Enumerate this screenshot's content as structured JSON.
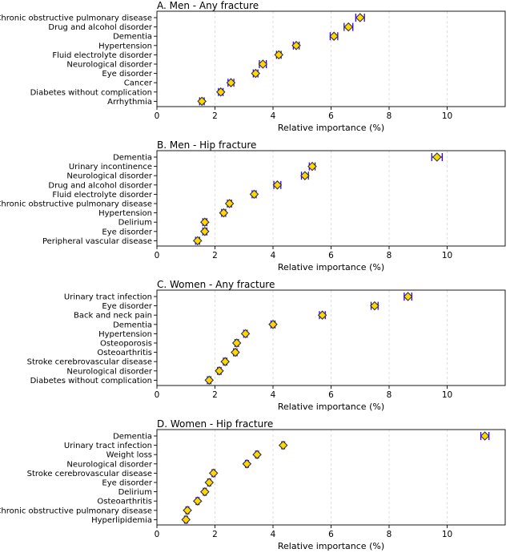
{
  "chart_data": [
    {
      "type": "scatter",
      "title": "A. Men - Any fracture",
      "xlabel": "Relative importance (%)",
      "xlim": [
        0,
        12
      ],
      "xticks": [
        0,
        2,
        4,
        6,
        8,
        10
      ],
      "grid": "vertical dashed",
      "categories": [
        "Chronic obstructive pulmonary disease",
        "Drug and alcohol disorder",
        "Dementia",
        "Hypertension",
        "Fluid electrolyte disorder",
        "Neurological disorder",
        "Eye disorder",
        "Cancer",
        "Diabetes without complication",
        "Arrhythmia"
      ],
      "values": [
        7.0,
        6.6,
        6.1,
        4.8,
        4.2,
        3.65,
        3.4,
        2.55,
        2.2,
        1.55
      ],
      "error": [
        0.15,
        0.15,
        0.13,
        0.1,
        0.08,
        0.12,
        0.08,
        0.1,
        0.08,
        0.08
      ]
    },
    {
      "type": "scatter",
      "title": "B. Men - Hip fracture",
      "xlabel": "Relative importance (%)",
      "xlim": [
        0,
        12
      ],
      "xticks": [
        0,
        2,
        4,
        6,
        8,
        10
      ],
      "grid": "vertical dashed",
      "categories": [
        "Dementia",
        "Urinary incontinence",
        "Neurological disorder",
        "Drug and alcohol disorder",
        "Fluid electrolyte disorder",
        "Chronic obstructive pulmonary disease",
        "Hypertension",
        "Delirium",
        "Eye disorder",
        "Peripheral vascular disease"
      ],
      "values": [
        9.65,
        5.35,
        5.1,
        4.15,
        3.35,
        2.5,
        2.3,
        1.65,
        1.65,
        1.4
      ],
      "error": [
        0.18,
        0.1,
        0.12,
        0.12,
        0.07,
        0.07,
        0.07,
        0.07,
        0.07,
        0.07
      ]
    },
    {
      "type": "scatter",
      "title": "C. Women - Any fracture",
      "xlabel": "Relative importance (%)",
      "xlim": [
        0,
        12
      ],
      "xticks": [
        0,
        2,
        4,
        6,
        8,
        10
      ],
      "grid": "vertical dashed",
      "categories": [
        "Urinary tract infection",
        "Eye disorder",
        "Back and neck pain",
        "Dementia",
        "Hypertension",
        "Osteoporosis",
        "Osteoarthritis",
        "Stroke cerebrovascular disease",
        "Neurological disorder",
        "Diabetes without complication"
      ],
      "values": [
        8.65,
        7.5,
        5.7,
        4.0,
        3.05,
        2.75,
        2.7,
        2.35,
        2.15,
        1.8
      ],
      "error": [
        0.13,
        0.12,
        0.1,
        0.07,
        0.06,
        0.06,
        0.06,
        0.06,
        0.06,
        0.06
      ]
    },
    {
      "type": "scatter",
      "title": "D. Women - Hip fracture",
      "xlabel": "Relative importance (%)",
      "xlim": [
        0,
        12
      ],
      "xticks": [
        0,
        2,
        4,
        6,
        8,
        10
      ],
      "grid": "vertical dashed",
      "categories": [
        "Dementia",
        "Urinary tract infection",
        "Weight loss",
        "Neurological disorder",
        "Stroke cerebrovascular disease",
        "Eye disorder",
        "Delirium",
        "Osteoarthritis",
        "Chronic obstructive pulmonary disease",
        "Hyperlipidemia"
      ],
      "values": [
        11.3,
        4.35,
        3.45,
        3.1,
        1.95,
        1.8,
        1.65,
        1.4,
        1.05,
        1.0
      ],
      "error": [
        0.14,
        0.05,
        0.05,
        0.05,
        0.05,
        0.05,
        0.05,
        0.05,
        0.05,
        0.05
      ]
    }
  ],
  "colors": {
    "marker_fill": "#FFD700",
    "marker_edge": "#333333",
    "errorbar": "#2B00FF",
    "grid": "#d6d6d6",
    "axis": "#000000",
    "text": "#000000"
  }
}
